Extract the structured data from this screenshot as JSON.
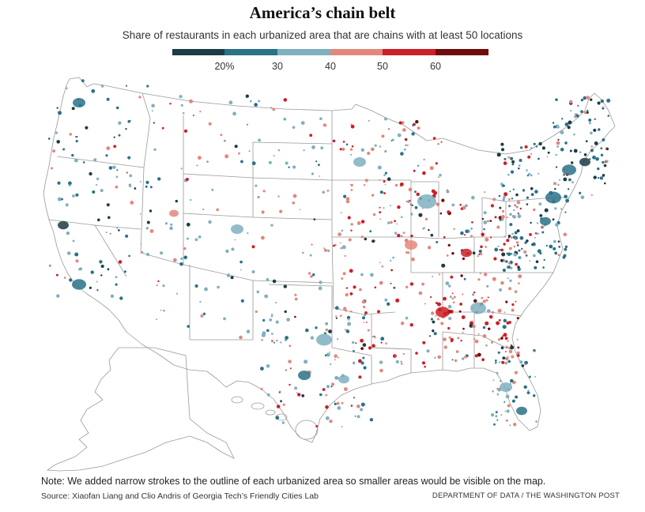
{
  "title": "America’s chain belt",
  "subtitle": "Share of restaurants in each urbanized area that are chains with at least 50 locations",
  "legend": {
    "colors": [
      "#1d3b44",
      "#2a7288",
      "#7fb0bf",
      "#e3877d",
      "#cc1f26",
      "#6f0c0c"
    ],
    "ticks": [
      "20%",
      "30",
      "40",
      "50",
      "60"
    ]
  },
  "note": "Note: We added narrow strokes to the outline of each urbanized area so smaller areas would be visible on the map.",
  "source": "Source: Xiaofan Liang and Clio Andris of Georgia Tech’s Friendly Cities Lab",
  "credit": "DEPARTMENT OF DATA / THE WASHINGTON POST"
}
